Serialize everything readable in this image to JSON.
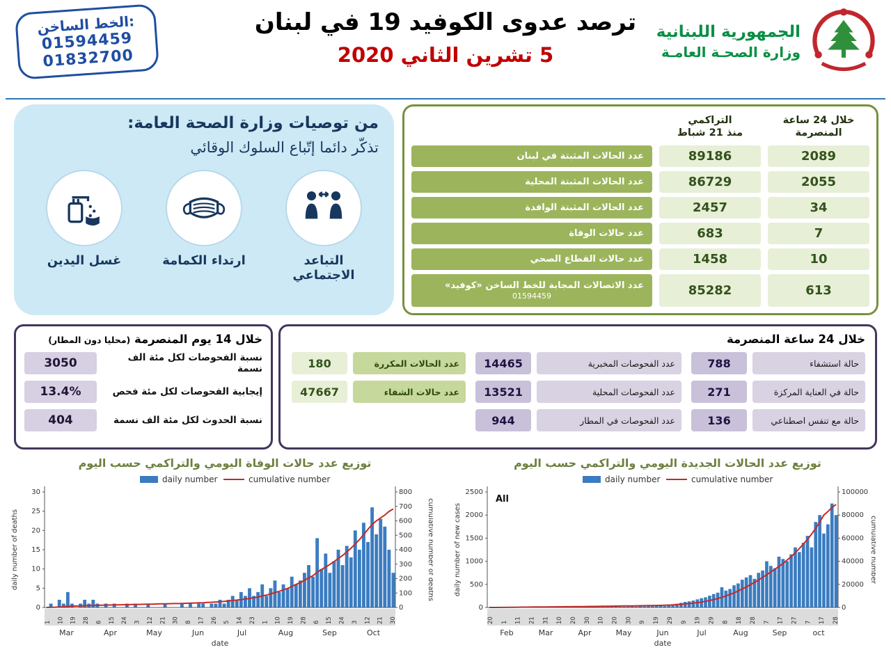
{
  "header": {
    "hotline_label": "الخط الساخن:",
    "hotline_numbers": [
      "01594459",
      "01832700"
    ],
    "title": "ترصد عدوى الكوفيد 19 في لبنان",
    "date": "5 تشرين الثاني 2020",
    "ministry_line1": "الجمهورية اللبنانية",
    "ministry_line2": "وزارة الصحـة العامـة"
  },
  "recommendations": {
    "title": "من توصيات وزارة الصحة العامة:",
    "subtitle": "تذكّر دائما إتّباع السلوك الوقائي",
    "items": [
      {
        "label": "التباعد الاجتماعي",
        "icon": "social-distancing-icon"
      },
      {
        "label": "ارتداء الكمامة",
        "icon": "face-mask-icon"
      },
      {
        "label": "غسل اليدين",
        "icon": "hand-washing-icon"
      }
    ]
  },
  "summary_table": {
    "header_daily": "خلال 24 ساعة\nالمنصرمة",
    "header_cumulative": "التراكمي\nمنذ 21 شباط",
    "rows": [
      {
        "label": "عدد الحالات المثبتة في لبنان",
        "daily": "2089",
        "cumulative": "89186"
      },
      {
        "label": "عدد الحالات المثبتة المحلية",
        "daily": "2055",
        "cumulative": "86729"
      },
      {
        "label": "عدد الحالات المثبتة الوافدة",
        "daily": "34",
        "cumulative": "2457"
      },
      {
        "label": "عدد حالات الوفاة",
        "daily": "7",
        "cumulative": "683"
      },
      {
        "label": "عدد حالات القطاع الصحي",
        "daily": "10",
        "cumulative": "1458"
      },
      {
        "label": "عدد الاتصالات المجابة  للخط الساخن «كوفيد»",
        "label2": "01594459",
        "daily": "613",
        "cumulative": "85282"
      }
    ]
  },
  "fourteen_day_panel": {
    "title": "خلال 14 يوم المنصرمة",
    "title_note": "(محليا دون المطار)",
    "rows": [
      {
        "label": "نسبة الفحوصات لكل مئة الف نسمة",
        "value": "3050"
      },
      {
        "label": "إيجابية الفحوصات لكل مئة فحص",
        "value": "13.4%"
      },
      {
        "label": "نسبة الحدوث لكل مئة الف نسمة",
        "value": "404"
      }
    ]
  },
  "last24_panel": {
    "title": "خلال 24 ساعة المنصرمة",
    "hospital_rows": [
      {
        "label": "حالة استشفاء",
        "value": "788"
      },
      {
        "label": "حالة في العناية المركزة",
        "value": "271"
      },
      {
        "label": "حالة مع تنفس اصطناعي",
        "value": "136"
      }
    ],
    "tests_rows": [
      {
        "label": "عدد الفحوصات المخبرية",
        "value": "14465"
      },
      {
        "label": "عدد الفحوصات المحلية",
        "value": "13521"
      },
      {
        "label": "عدد الفحوصات في المطار",
        "value": "944"
      }
    ],
    "green_rows": [
      {
        "label": "عدد الحالات المكررة",
        "value": "180"
      },
      {
        "label": "عدد حالات الشفاء",
        "value": "47667"
      }
    ]
  },
  "colors": {
    "hotline_blue": "#1f4ea1",
    "date_red": "#c00000",
    "ministry_green": "#0a8f44",
    "emblem_red": "#c0272d",
    "panel_blue": "#cde9f5",
    "green_border": "#76923c",
    "purple_border": "#43355c",
    "bar_blue": "#3b7cc0",
    "line_red": "#c62828"
  },
  "chart_data": [
    {
      "type": "bar",
      "title": "توزيع عدد حالات  الوفاة اليومي والتراكمي حسب اليوم",
      "legend": [
        "daily number",
        "cumulative number"
      ],
      "ylabel_left": "daily number of deaths",
      "ylabel_right": "cumulative number of deaths",
      "xlabel": "date",
      "ylim_left": [
        0,
        30
      ],
      "ylim_right": [
        0,
        800
      ],
      "yticks_left": [
        0,
        5,
        10,
        15,
        20,
        25,
        30
      ],
      "yticks_right": [
        0,
        100,
        200,
        300,
        400,
        500,
        600,
        700,
        800
      ],
      "day_ticks": [
        "1",
        "10",
        "19",
        "28",
        "6",
        "15",
        "24",
        "3",
        "12",
        "21",
        "30",
        "8",
        "17",
        "26",
        "5",
        "14",
        "23",
        "1",
        "10",
        "19",
        "28",
        "6",
        "15",
        "24",
        "3",
        "12",
        "21",
        "30"
      ],
      "month_ticks": [
        "Mar",
        "Apr",
        "May",
        "Jun",
        "Jul",
        "Aug",
        "Sep",
        "Oct"
      ],
      "bar_color": "#3b7cc0",
      "line_color": "#c62828",
      "daily": [
        0,
        1,
        0,
        2,
        1,
        4,
        1,
        0,
        1,
        2,
        1,
        2,
        1,
        0,
        1,
        0,
        1,
        0,
        0,
        1,
        0,
        1,
        0,
        0,
        1,
        0,
        0,
        0,
        1,
        0,
        0,
        0,
        1,
        0,
        1,
        0,
        1,
        1,
        0,
        1,
        1,
        2,
        1,
        2,
        3,
        2,
        4,
        3,
        5,
        3,
        4,
        6,
        3,
        5,
        7,
        4,
        6,
        5,
        8,
        6,
        7,
        9,
        11,
        8,
        18,
        10,
        14,
        9,
        12,
        15,
        11,
        16,
        13,
        20,
        15,
        22,
        17,
        26,
        19,
        23,
        21,
        15,
        9
      ],
      "cumulative": [
        0,
        1,
        2,
        4,
        5,
        8,
        9,
        10,
        11,
        12,
        13,
        14,
        15,
        16,
        17,
        17,
        18,
        18,
        19,
        19,
        20,
        21,
        21,
        22,
        23,
        23,
        24,
        25,
        25,
        26,
        27,
        27,
        28,
        29,
        30,
        31,
        32,
        33,
        35,
        36,
        38,
        40,
        42,
        45,
        48,
        51,
        55,
        58,
        62,
        68,
        72,
        80,
        86,
        94,
        103,
        112,
        122,
        132,
        145,
        160,
        172,
        188,
        205,
        220,
        245,
        262,
        280,
        298,
        318,
        340,
        360,
        385,
        410,
        440,
        470,
        505,
        540,
        575,
        600,
        620,
        640,
        665,
        683
      ]
    },
    {
      "type": "bar",
      "title": "توزيع عدد الحالات الجديدة اليومي والتراكمي حسب اليوم",
      "annotation": "All",
      "legend": [
        "daily number",
        "cumulative number"
      ],
      "ylabel_left": "daily number of new cases",
      "ylabel_right": "cumulative number",
      "xlabel": "date",
      "ylim_left": [
        0,
        2500
      ],
      "ylim_right": [
        0,
        100000
      ],
      "yticks_left": [
        0,
        500,
        1000,
        1500,
        2000,
        2500
      ],
      "yticks_right": [
        0,
        20000,
        40000,
        60000,
        80000,
        100000
      ],
      "day_ticks": [
        "20",
        "1",
        "11",
        "21",
        "31",
        "10",
        "20",
        "30",
        "10",
        "20",
        "30",
        "9",
        "19",
        "29",
        "9",
        "19",
        "29",
        "8",
        "18",
        "28",
        "7",
        "17",
        "27",
        "7",
        "17",
        "28"
      ],
      "month_ticks": [
        "Feb",
        "Mar",
        "Apr",
        "May",
        "Jun",
        "Jul",
        "Aug",
        "Sep",
        "oct"
      ],
      "bar_color": "#3b7cc0",
      "line_color": "#c62828",
      "daily": [
        1,
        2,
        3,
        5,
        8,
        12,
        15,
        10,
        14,
        18,
        12,
        16,
        9,
        10,
        8,
        12,
        6,
        9,
        5,
        7,
        4,
        8,
        6,
        30,
        20,
        10,
        25,
        15,
        35,
        20,
        30,
        25,
        15,
        15,
        20,
        25,
        18,
        30,
        22,
        35,
        28,
        40,
        32,
        30,
        45,
        60,
        80,
        100,
        120,
        132,
        150,
        175,
        200,
        220,
        255,
        290,
        320,
        439,
        365,
        400,
        480,
        520,
        600,
        650,
        700,
        620,
        750,
        800,
        1000,
        900,
        850,
        1100,
        1050,
        1000,
        1150,
        1300,
        1200,
        1400,
        1550,
        1300,
        1850,
        2000,
        1600,
        1800,
        2250,
        2000
      ],
      "cumulative": [
        2,
        5,
        10,
        40,
        80,
        130,
        180,
        230,
        280,
        320,
        360,
        400,
        450,
        480,
        510,
        540,
        570,
        600,
        630,
        660,
        680,
        700,
        725,
        780,
        830,
        880,
        930,
        980,
        1030,
        1080,
        1130,
        1190,
        1250,
        1300,
        1350,
        1410,
        1470,
        1530,
        1590,
        1650,
        1700,
        1750,
        1800,
        1900,
        2050,
        2250,
        2500,
        2800,
        3100,
        3400,
        3800,
        4200,
        4700,
        5300,
        6000,
        6800,
        7700,
        8800,
        10000,
        11300,
        12700,
        14300,
        16000,
        17800,
        19700,
        21700,
        23800,
        26000,
        28300,
        30700,
        33200,
        35500,
        38000,
        41000,
        44000,
        47500,
        51000,
        55000,
        59000,
        63500,
        68500,
        74000,
        80000,
        83000,
        86500,
        89186
      ]
    }
  ]
}
